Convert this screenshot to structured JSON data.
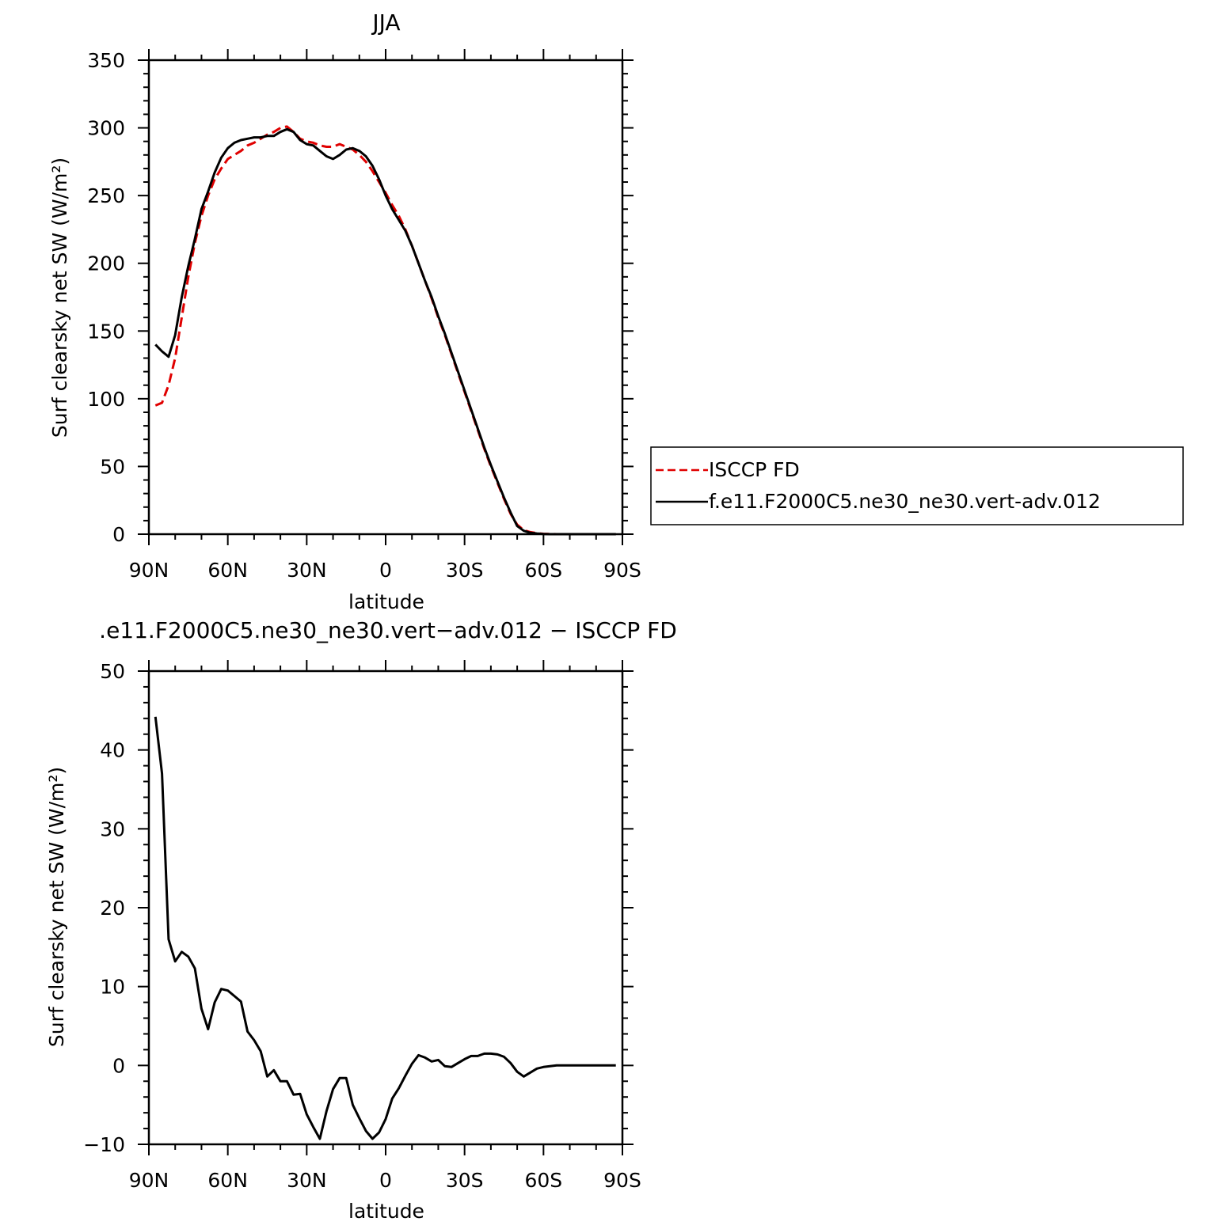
{
  "chart_data": [
    {
      "type": "line",
      "title": "JJA",
      "xlabel": "latitude",
      "ylabel": "Surf clearsky net SW (W/m²)",
      "xlim": [
        90,
        -90
      ],
      "ylim": [
        0,
        350
      ],
      "x_ticks": [
        90,
        60,
        30,
        0,
        -30,
        -60,
        -90
      ],
      "x_tick_labels": [
        "90N",
        "60N",
        "30N",
        "0",
        "30S",
        "60S",
        "90S"
      ],
      "y_ticks": [
        0,
        50,
        100,
        150,
        200,
        250,
        300,
        350
      ],
      "y_tick_labels": [
        "0",
        "50",
        "100",
        "150",
        "200",
        "250",
        "300",
        "350"
      ],
      "legend": {
        "placement": "right, outside plot"
      },
      "series": [
        {
          "name": "ISCCP FD",
          "color": "#e00000",
          "dash": "dashed",
          "x": [
            87.5,
            85,
            82.5,
            80,
            77.5,
            75,
            72.5,
            70,
            67.5,
            65,
            62.5,
            60,
            57.5,
            55,
            52.5,
            50,
            47.5,
            45,
            42.5,
            40,
            37.5,
            35,
            32.5,
            30,
            27.5,
            25,
            22.5,
            20,
            17.5,
            15,
            12.5,
            10,
            7.5,
            5,
            2.5,
            0,
            -2.5,
            -5,
            -7.5,
            -10,
            -12.5,
            -15,
            -17.5,
            -20,
            -22.5,
            -25,
            -27.5,
            -30,
            -32.5,
            -35,
            -37.5,
            -40,
            -42.5,
            -45,
            -47.5,
            -50,
            -52.5,
            -55,
            -57.5,
            -60,
            -62.5,
            -65,
            -67.5,
            -70,
            -72.5,
            -75,
            -77.5,
            -80,
            -82.5,
            -85,
            -87.5
          ],
          "y": [
            95,
            97,
            110,
            130,
            160,
            190,
            215,
            235,
            250,
            262,
            270,
            277,
            280,
            283,
            287,
            289,
            292,
            295,
            297,
            300,
            301,
            297,
            292,
            290,
            289,
            287,
            286,
            286,
            288,
            286,
            284,
            280,
            275,
            268,
            260,
            252,
            243,
            235,
            225,
            213,
            200,
            187,
            174,
            160,
            147,
            133,
            119,
            105,
            91,
            77,
            63,
            50,
            38,
            26,
            15,
            7,
            3,
            1.5,
            0.7,
            0.3,
            0.1,
            0,
            0,
            0,
            0,
            0,
            0,
            0,
            0,
            0,
            0
          ]
        },
        {
          "name": "f.e11.F2000C5.ne30_ne30.vert-adv.012",
          "color": "#000000",
          "dash": "solid",
          "x": [
            87.5,
            85,
            82.5,
            80,
            77.5,
            75,
            72.5,
            70,
            67.5,
            65,
            62.5,
            60,
            57.5,
            55,
            52.5,
            50,
            47.5,
            45,
            42.5,
            40,
            37.5,
            35,
            32.5,
            30,
            27.5,
            25,
            22.5,
            20,
            17.5,
            15,
            12.5,
            10,
            7.5,
            5,
            2.5,
            0,
            -2.5,
            -5,
            -7.5,
            -10,
            -12.5,
            -15,
            -17.5,
            -20,
            -22.5,
            -25,
            -27.5,
            -30,
            -32.5,
            -35,
            -37.5,
            -40,
            -42.5,
            -45,
            -47.5,
            -50,
            -52.5,
            -55,
            -57.5,
            -60,
            -62.5,
            -65,
            -67.5,
            -70,
            -72.5,
            -75,
            -77.5,
            -80,
            -82.5,
            -85,
            -87.5
          ],
          "y": [
            140,
            135,
            131,
            147,
            175,
            198,
            218,
            240,
            253,
            267,
            278,
            285,
            289,
            291,
            292,
            293,
            293,
            294,
            294,
            297,
            299,
            297,
            291,
            288,
            287,
            283,
            279,
            277,
            280,
            284,
            285,
            283,
            279,
            272,
            262,
            250,
            240,
            232,
            224,
            213,
            200,
            187,
            175,
            161,
            148,
            134,
            120,
            106,
            92,
            78,
            64,
            51,
            39,
            27,
            16,
            6,
            2.5,
            1,
            0.5,
            0.2,
            0,
            0,
            0,
            0,
            0,
            0,
            0,
            0,
            0,
            0,
            0
          ]
        }
      ]
    },
    {
      "type": "line",
      "title": ".e11.F2000C5.ne30_ne30.vert−adv.012 − ISCCP FD",
      "xlabel": "latitude",
      "ylabel": "Surf clearsky net SW (W/m²)",
      "xlim": [
        90,
        -90
      ],
      "ylim": [
        -10,
        50
      ],
      "x_ticks": [
        90,
        60,
        30,
        0,
        -30,
        -60,
        -90
      ],
      "x_tick_labels": [
        "90N",
        "60N",
        "30N",
        "0",
        "30S",
        "60S",
        "90S"
      ],
      "y_ticks": [
        -10,
        0,
        10,
        20,
        30,
        40,
        50
      ],
      "y_tick_labels": [
        "−10",
        "0",
        "10",
        "20",
        "30",
        "40",
        "50"
      ],
      "series": [
        {
          "color": "#000000",
          "dash": "solid",
          "x": [
            87.5,
            85,
            82.5,
            80,
            77.5,
            75,
            72.5,
            70,
            67.5,
            65,
            62.5,
            60,
            57.5,
            55,
            52.5,
            50,
            47.5,
            45,
            42.5,
            40,
            37.5,
            35,
            32.5,
            30,
            27.5,
            25,
            22.5,
            20,
            17.5,
            15,
            12.5,
            10,
            7.5,
            5,
            2.5,
            0,
            -2.5,
            -5,
            -7.5,
            -10,
            -12.5,
            -15,
            -17.5,
            -20,
            -22.5,
            -25,
            -27.5,
            -30,
            -32.5,
            -35,
            -37.5,
            -40,
            -42.5,
            -45,
            -47.5,
            -50,
            -52.5,
            -55,
            -57.5,
            -60,
            -62.5,
            -65,
            -67.5,
            -70,
            -72.5,
            -75,
            -77.5,
            -80,
            -82.5,
            -85,
            -87.5
          ],
          "y": [
            44.2,
            37,
            16,
            13.2,
            14.4,
            13.8,
            12.3,
            7.2,
            4.6,
            8,
            9.7,
            9.5,
            8.8,
            8.1,
            4.3,
            3.2,
            1.8,
            -1.4,
            -0.6,
            -2,
            -2,
            -3.7,
            -3.6,
            -6.2,
            -7.8,
            -9.3,
            -5.8,
            -3,
            -1.6,
            -1.6,
            -5,
            -6.7,
            -8.3,
            -9.3,
            -8.5,
            -6.8,
            -4.2,
            -2.9,
            -1.3,
            0.2,
            1.3,
            1,
            0.5,
            0.7,
            -0.1,
            -0.2,
            0.3,
            0.8,
            1.2,
            1.2,
            1.5,
            1.5,
            1.4,
            1.1,
            0.3,
            -0.8,
            -1.4,
            -0.9,
            -0.4,
            -0.2,
            -0.1,
            0,
            0,
            0,
            0,
            0,
            0,
            0,
            0,
            0,
            0
          ]
        }
      ]
    }
  ]
}
